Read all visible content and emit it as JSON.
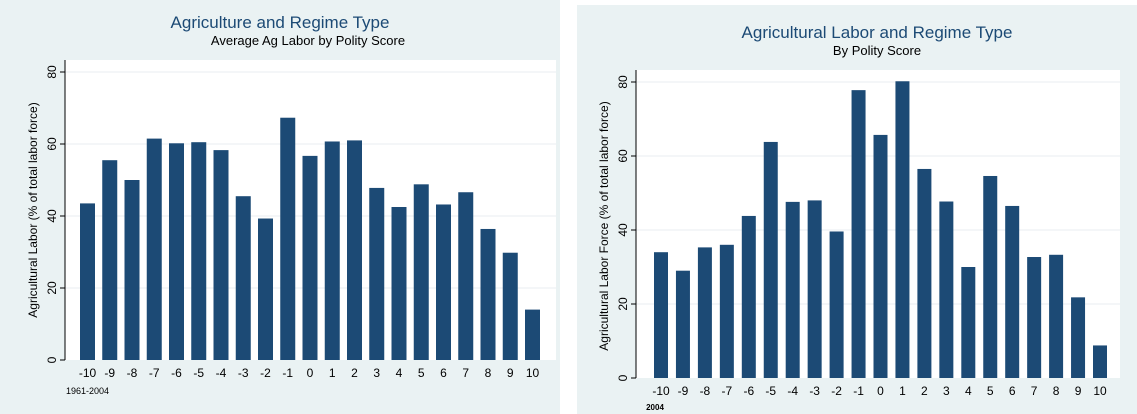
{
  "chart_data": [
    {
      "type": "bar",
      "title": "Agriculture and Regime Type",
      "subtitle": "Average Ag Labor by Polity Score",
      "xlabel": "",
      "ylabel": "Agricultural Labor (% of total labor force)",
      "note": "1961-2004",
      "categories": [
        "-10",
        "-9",
        "-8",
        "-7",
        "-6",
        "-5",
        "-4",
        "-3",
        "-2",
        "-1",
        "0",
        "1",
        "2",
        "3",
        "4",
        "5",
        "6",
        "7",
        "8",
        "9",
        "10"
      ],
      "values": [
        43.5,
        55.5,
        50,
        61.5,
        60.2,
        60.5,
        58.3,
        45.5,
        39.3,
        67.3,
        56.7,
        60.7,
        61,
        47.8,
        42.5,
        48.8,
        43.2,
        46.6,
        36.4,
        29.8,
        14
      ],
      "ylim": [
        0,
        80
      ],
      "yticks": [
        "0",
        "20",
        "40",
        "60",
        "80"
      ],
      "grid": true,
      "bar_color": "#1c4a75"
    },
    {
      "type": "bar",
      "title": "Agricultural Labor and Regime Type",
      "subtitle": "By Polity Score",
      "xlabel": "",
      "ylabel": "Agricultural Labor Force (% of total labor force)",
      "note": "2004",
      "categories": [
        "-10",
        "-9",
        "-8",
        "-7",
        "-6",
        "-5",
        "-4",
        "-3",
        "-2",
        "-1",
        "0",
        "1",
        "2",
        "3",
        "4",
        "5",
        "6",
        "7",
        "8",
        "9",
        "10"
      ],
      "values": [
        34,
        29,
        35.3,
        36,
        43.8,
        63.8,
        47.6,
        48,
        39.6,
        77.8,
        65.7,
        80.2,
        56.5,
        47.7,
        30,
        54.6,
        46.5,
        32.7,
        33.3,
        21.8,
        8.8
      ],
      "ylim": [
        0,
        80
      ],
      "yticks": [
        "0",
        "20",
        "40",
        "60",
        "80"
      ],
      "grid": true,
      "bar_color": "#1c4a75"
    }
  ]
}
